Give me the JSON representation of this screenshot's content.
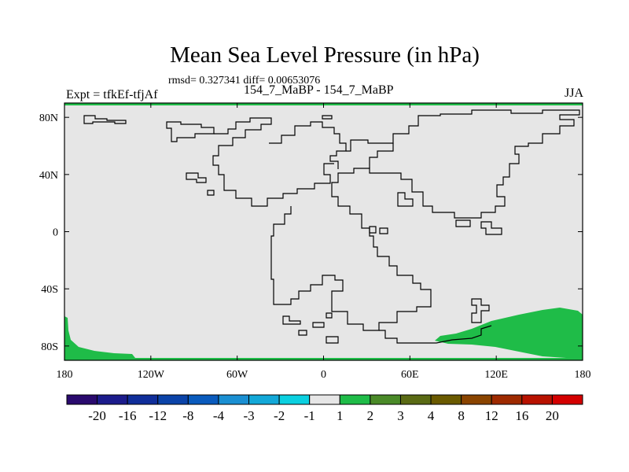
{
  "header": {
    "title": "Mean Sea Level Pressure (in hPa)",
    "stats": "rmsd= 0.327341 diff= 0.00653076",
    "experiment": "Expt = tfkEf-tfjAf",
    "center_label": "154_7_MaBP - 154_7_MaBP",
    "season": "JJA"
  },
  "chart_data": {
    "type": "heatmap",
    "title": "Mean Sea Level Pressure (in hPa)",
    "x_ticks": [
      "180",
      "120W",
      "60W",
      "0",
      "60E",
      "120E",
      "180"
    ],
    "x_tick_values": [
      -180,
      -120,
      -60,
      0,
      60,
      120,
      180
    ],
    "y_ticks": [
      "80N",
      "40N",
      "0",
      "40S",
      "80S"
    ],
    "y_tick_values": [
      80,
      40,
      0,
      -40,
      -80
    ],
    "xlim": [
      -180,
      180
    ],
    "ylim": [
      -90,
      90
    ],
    "colorbar": {
      "labels": [
        "-20",
        "-16",
        "-12",
        "-8",
        "-4",
        "-3",
        "-2",
        "-1",
        "1",
        "2",
        "3",
        "4",
        "8",
        "12",
        "16",
        "20"
      ],
      "colors": [
        "#2a0a6e",
        "#1c1c8c",
        "#102e9a",
        "#0b43a8",
        "#0a5bbd",
        "#1a8fd2",
        "#13a8d8",
        "#0bd0e0",
        "#e6e6e6",
        "#1fbc48",
        "#4a8a28",
        "#5a6a14",
        "#6a5a00",
        "#8a4400",
        "#9e2a00",
        "#b81200",
        "#d40000"
      ]
    },
    "background_value_bin": "-1 to 1",
    "highlighted_regions": [
      {
        "name": "Antarctic coast near 180",
        "bin": "1 to 2",
        "lon_range": [
          -180,
          -135
        ],
        "lat_range": [
          -90,
          -70
        ]
      },
      {
        "name": "Southern Ocean 60E-180E",
        "bin": "1 to 2",
        "lon_range": [
          78,
          180
        ],
        "lat_range": [
          -90,
          -53
        ]
      },
      {
        "name": "Northern polar edge",
        "bin": "1 to 2",
        "lon_range": [
          -180,
          180
        ],
        "lat_range": [
          88,
          90
        ]
      },
      {
        "name": "Southern polar edge",
        "bin": "1 to 2",
        "lon_range": [
          -180,
          180
        ],
        "lat_range": [
          -90,
          -88
        ]
      }
    ]
  }
}
